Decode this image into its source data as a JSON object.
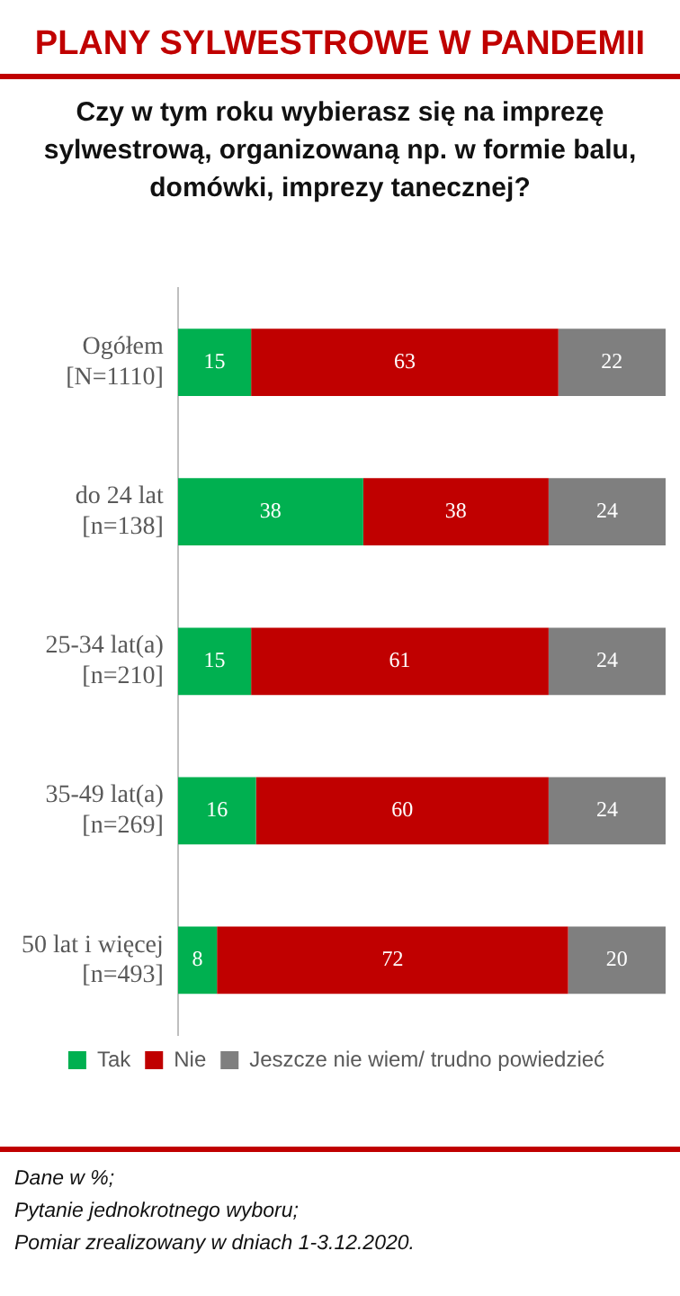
{
  "chart_data": {
    "type": "bar",
    "orientation": "horizontal",
    "stacked": true,
    "title": "PLANY SYLWESTROWE W PANDEMII",
    "subtitle": "Czy w tym roku wybierasz się na imprezę sylwestrową, organizowaną np. w formie balu, domówki, imprezy tanecznej?",
    "categories": [
      "Ogółem\n[N=1110]",
      "do 24 lat\n[n=138]",
      "25-34 lat(a)\n[n=210]",
      "35-49 lat(a)\n[n=269]",
      "50 lat i więcej\n[n=493]"
    ],
    "series": [
      {
        "name": "Tak",
        "color": "#00b050",
        "values": [
          15,
          38,
          15,
          16,
          8
        ]
      },
      {
        "name": "Nie",
        "color": "#c00000",
        "values": [
          63,
          38,
          61,
          60,
          72
        ]
      },
      {
        "name": "Jeszcze nie wiem/ trudno powiedzieć",
        "color": "#7f7f7f",
        "values": [
          22,
          24,
          24,
          24,
          20
        ]
      }
    ],
    "xlim": [
      0,
      100
    ],
    "tick_labels": "y",
    "grid": false,
    "legend": "bottom",
    "data_labels": true,
    "annotations": [
      "Dane w %;",
      "Pytanie jednokrotnego wyboru;",
      "Pomiar zrealizowany w dniach 1-3.12.2020."
    ]
  }
}
